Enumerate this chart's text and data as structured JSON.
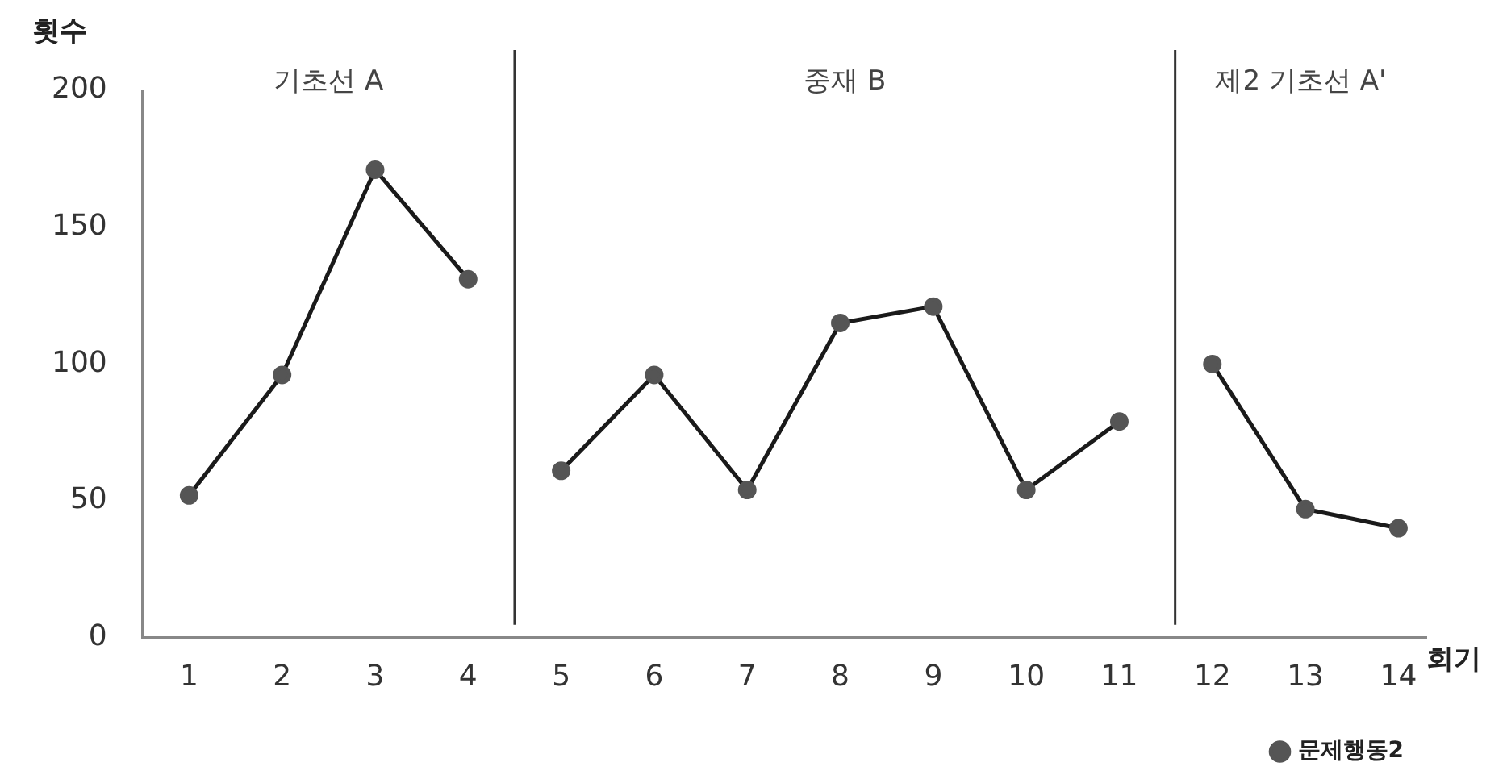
{
  "chart_data": {
    "type": "line",
    "xlabel": "회기",
    "ylabel": "횟수",
    "x": [
      1,
      2,
      3,
      4,
      5,
      6,
      7,
      8,
      9,
      10,
      11,
      12,
      13,
      14
    ],
    "xlim": [
      0.5,
      14.3
    ],
    "xticks": [
      1,
      2,
      3,
      4,
      5,
      6,
      7,
      8,
      9,
      10,
      11,
      12,
      13,
      14
    ],
    "ylim": [
      0,
      200
    ],
    "yticks": [
      0,
      50,
      100,
      150,
      200
    ],
    "series": [
      {
        "name": "문제행동2",
        "color": "#555555",
        "values": [
          52,
          96,
          171,
          131,
          61,
          96,
          54,
          115,
          121,
          54,
          79,
          100,
          47,
          40
        ]
      }
    ],
    "ref_lines": [
      {
        "axis": "x",
        "value": 4.5,
        "color": "#333333"
      },
      {
        "axis": "x",
        "value": 11.6,
        "color": "#333333"
      }
    ],
    "annotations": [
      "기초선 A",
      "중재 B",
      "제2 기초선 A'"
    ],
    "grid": false,
    "legend": "bottom right",
    "marker": "circle",
    "line_style": "solid"
  }
}
